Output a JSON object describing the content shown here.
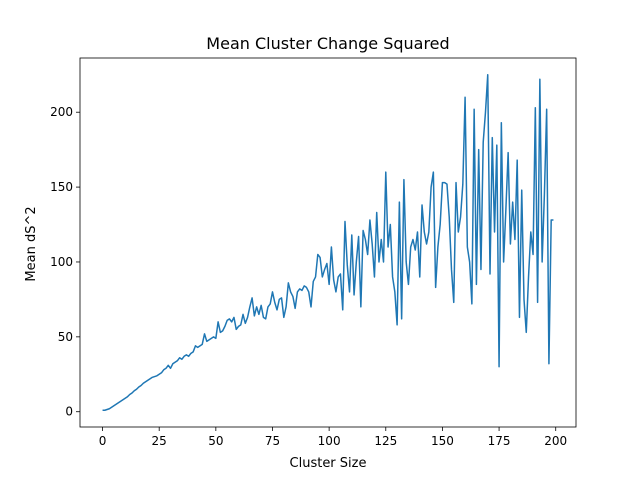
{
  "chart_data": {
    "type": "line",
    "title": "Mean Cluster Change Squared",
    "x_label": "Cluster Size",
    "y_label": "Mean dS^2",
    "x": [
      0,
      1,
      2,
      3,
      4,
      5,
      6,
      7,
      8,
      9,
      10,
      11,
      12,
      13,
      14,
      15,
      16,
      17,
      18,
      19,
      20,
      21,
      22,
      23,
      24,
      25,
      26,
      27,
      28,
      29,
      30,
      31,
      32,
      33,
      34,
      35,
      36,
      37,
      38,
      39,
      40,
      41,
      42,
      43,
      44,
      45,
      46,
      47,
      48,
      49,
      50,
      51,
      52,
      53,
      54,
      55,
      56,
      57,
      58,
      59,
      60,
      61,
      62,
      63,
      64,
      65,
      66,
      67,
      68,
      69,
      70,
      71,
      72,
      73,
      74,
      75,
      76,
      77,
      78,
      79,
      80,
      81,
      82,
      83,
      84,
      85,
      86,
      87,
      88,
      89,
      90,
      91,
      92,
      93,
      94,
      95,
      96,
      97,
      98,
      99,
      100,
      101,
      102,
      103,
      104,
      105,
      106,
      107,
      108,
      109,
      110,
      111,
      112,
      113,
      114,
      115,
      116,
      117,
      118,
      119,
      120,
      121,
      122,
      123,
      124,
      125,
      126,
      127,
      128,
      129,
      130,
      131,
      132,
      133,
      134,
      135,
      136,
      137,
      138,
      139,
      140,
      141,
      142,
      143,
      144,
      145,
      146,
      147,
      148,
      149,
      150,
      151,
      152,
      153,
      154,
      155,
      156,
      157,
      158,
      159,
      160,
      161,
      162,
      163,
      164,
      165,
      166,
      167,
      168,
      169,
      170,
      171,
      172,
      173,
      174,
      175,
      176,
      177,
      178,
      179,
      180,
      181,
      182,
      183,
      184,
      185,
      186,
      187,
      188,
      189,
      190,
      191,
      192,
      193,
      194,
      195,
      196,
      197,
      198,
      199
    ],
    "series": [
      {
        "color": "#1f77b4",
        "values": [
          1,
          1,
          1.5,
          2,
          3,
          4,
          5,
          6,
          7,
          8,
          9,
          10,
          11.5,
          12.5,
          14,
          15,
          16.5,
          17.5,
          19,
          20,
          21,
          22,
          23,
          23.5,
          24,
          25,
          26,
          28,
          29,
          31,
          29,
          32,
          33,
          34,
          36,
          35,
          37,
          38,
          37,
          39,
          40,
          44,
          43,
          44,
          45,
          52,
          47,
          48,
          49,
          50,
          49,
          60,
          53,
          54,
          57,
          61,
          62,
          60,
          63,
          55,
          57,
          58,
          65,
          59,
          63,
          70,
          76,
          64,
          70,
          65,
          71,
          63,
          62,
          70,
          72,
          80,
          73,
          68,
          75,
          76,
          63,
          70,
          86,
          80,
          77,
          69,
          80,
          82,
          81,
          84,
          83,
          80,
          70,
          87,
          90,
          105,
          103,
          90,
          95,
          99,
          85,
          110,
          88,
          80,
          90,
          92,
          68,
          127,
          98,
          80,
          118,
          78,
          100,
          117,
          70,
          121,
          115,
          105,
          128,
          112,
          90,
          133,
          100,
          115,
          100,
          160,
          110,
          125,
          90,
          80,
          58,
          140,
          62,
          155,
          100,
          85,
          110,
          115,
          108,
          120,
          90,
          138,
          120,
          112,
          120,
          150,
          160,
          83,
          110,
          125,
          153,
          153,
          152,
          130,
          95,
          73,
          153,
          120,
          130,
          152,
          210,
          110,
          100,
          72,
          202,
          85,
          175,
          95,
          180,
          200,
          225,
          92,
          183,
          120,
          178,
          30,
          193,
          100,
          135,
          173,
          112,
          140,
          115,
          168,
          63,
          148,
          75,
          53,
          90,
          120,
          105,
          203,
          73,
          222,
          100,
          145,
          202,
          32,
          128,
          128
        ]
      }
    ],
    "xlim": [
      -9.95,
      208.95
    ],
    "ylim": [
      -10.2,
      236.2
    ],
    "xticks": [
      0,
      25,
      50,
      75,
      100,
      125,
      150,
      175,
      200
    ],
    "yticks": [
      0,
      50,
      100,
      150,
      200
    ]
  }
}
